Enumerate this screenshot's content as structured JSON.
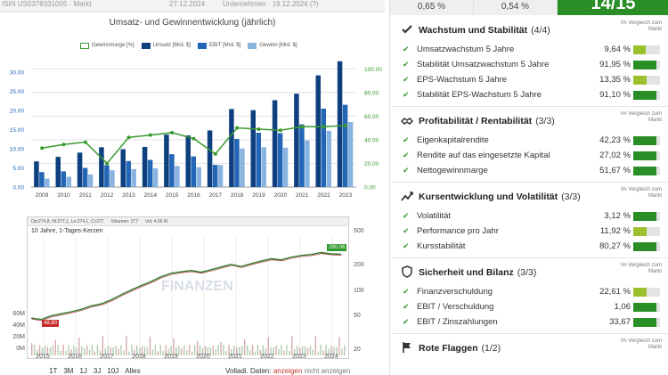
{
  "top_strip": {
    "left_text": "ISIN  US0378331005 · Markt",
    "mid_text": "27.12.2024",
    "right_text": "Unternehmen · 19.12.2024 (?)"
  },
  "colors": {
    "dark_blue": "#0e3f7f",
    "mid_blue": "#2366b5",
    "light_blue": "#8ab4e0",
    "green_line": "#3a9b2f",
    "score_green": "#2a8e27",
    "bar_green": "#2a8e27",
    "bar_lime": "#9bc02e"
  },
  "chart_data": {
    "type": "bar",
    "title": "Umsatz- und Gewinnentwicklung (jährlich)",
    "categories": [
      "2009",
      "2010",
      "2011",
      "2012",
      "2013",
      "2014",
      "2015",
      "2016",
      "2017",
      "2018",
      "2019",
      "2020",
      "2021",
      "2022",
      "2023"
    ],
    "series": [
      {
        "name": "Umsatz [Mrd. $]",
        "values": [
          6.7,
          7.9,
          9.0,
          10.4,
          9.9,
          10.5,
          13.7,
          13.5,
          14.8,
          20.4,
          20.1,
          22.7,
          24.4,
          29.2,
          32.9
        ]
      },
      {
        "name": "EBIT [Mrd. $]",
        "values": [
          3.9,
          4.1,
          5.0,
          5.7,
          6.8,
          7.1,
          8.6,
          8.0,
          5.8,
          12.6,
          14.2,
          14.1,
          16.4,
          20.5,
          21.5
        ]
      },
      {
        "name": "Gewinn [Mrd. $]",
        "values": [
          2.2,
          2.7,
          3.3,
          4.4,
          4.7,
          4.9,
          5.5,
          5.2,
          5.8,
          10.1,
          10.4,
          10.3,
          12.2,
          14.7,
          17.0
        ]
      },
      {
        "name": "Gewinnmarge [%]",
        "axis": "right",
        "values": [
          33,
          36,
          38,
          20,
          42,
          44,
          46,
          41,
          28,
          50,
          49,
          48,
          51,
          51,
          52
        ]
      }
    ],
    "left_axis": {
      "ticks": [
        "0.00",
        "5.00",
        "10.00",
        "15.00",
        "20.00",
        "25.00",
        "30.00"
      ],
      "ylim": [
        0,
        34
      ]
    },
    "right_axis": {
      "ticks": [
        "0.00",
        "20.00",
        "40.00",
        "60.00",
        "80.00",
        "100.00"
      ],
      "ylim": [
        0,
        110
      ]
    },
    "legend_placement": "top"
  },
  "stock": {
    "header_items": [
      "Op:274,8, Hi:277,1, Lo:274,1, Cl:277",
      "Volumen: 277",
      "Vol: 4,66 M"
    ],
    "subtitle": "10 Jahre, 1-Tages-Kerzen",
    "watermark": "FINANZEN",
    "right_ticks": [
      "500",
      "200",
      "100",
      "50",
      "20"
    ],
    "left_ticks": [
      "60M",
      "40M",
      "20M",
      "0M"
    ],
    "x_ticks": [
      "2015",
      "2016",
      "2017",
      "2018",
      "2019",
      "2020",
      "2021",
      "2022",
      "2023",
      "2024"
    ],
    "high_badge": "290,06",
    "low_badge": "48,80",
    "price_path": [
      48.8,
      47,
      52,
      55,
      58,
      62,
      68,
      72,
      80,
      92,
      105,
      118,
      132,
      150,
      165,
      172,
      178,
      170,
      182,
      196,
      210,
      198,
      215,
      230,
      245,
      238,
      255,
      268,
      275,
      290,
      280,
      277
    ]
  },
  "range_buttons": [
    "1T",
    "3M",
    "1J",
    "3J",
    "10J",
    "Alles"
  ],
  "volume_note": {
    "prefix": "Volladi. Daten:",
    "show": "anzeigen",
    "hide": "nicht anzeigen"
  },
  "header": {
    "cells": [
      "0,65 %",
      "0,54 %"
    ],
    "score": "14/15"
  },
  "cmp_label": "Im Vergleich zum Markt",
  "sections": [
    {
      "icon": "check-icon",
      "title": "Wachstum und Stabilität",
      "count": "(4/4)",
      "rows": [
        {
          "label": "Umsatzwachstum 5 Jahre",
          "value": "9,64 %",
          "level": 0.45,
          "color": "#9bc02e"
        },
        {
          "label": "Stabilität Umsatzwachstum 5 Jahre",
          "value": "91,95 %",
          "level": 0.85,
          "color": "#2a8e27"
        },
        {
          "label": "EPS-Wachstum 5 Jahre",
          "value": "13,35 %",
          "level": 0.5,
          "color": "#9bc02e"
        },
        {
          "label": "Stabilität EPS-Wachstum 5 Jahre",
          "value": "91,10 %",
          "level": 0.85,
          "color": "#2a8e27"
        }
      ]
    },
    {
      "icon": "handshake-icon",
      "title": "Profitabilität / Rentabilität",
      "count": "(3/3)",
      "rows": [
        {
          "label": "Eigenkapitalrendite",
          "value": "42,23 %",
          "level": 0.85,
          "color": "#2a8e27"
        },
        {
          "label": "Rendite auf das eingesetzte Kapital",
          "value": "27,02 %",
          "level": 0.85,
          "color": "#2a8e27"
        },
        {
          "label": "Nettogewinnmarge",
          "value": "51,67 %",
          "level": 0.85,
          "color": "#2a8e27"
        }
      ]
    },
    {
      "icon": "trend-icon",
      "title": "Kursentwicklung und Volatilität",
      "count": "(3/3)",
      "rows": [
        {
          "label": "Volatilität",
          "value": "3,12 %",
          "level": 0.85,
          "color": "#2a8e27"
        },
        {
          "label": "Performance pro Jahr",
          "value": "11,92 %",
          "level": 0.5,
          "color": "#9bc02e"
        },
        {
          "label": "Kursstabilität",
          "value": "80,27 %",
          "level": 0.85,
          "color": "#2a8e27"
        }
      ]
    },
    {
      "icon": "shield-icon",
      "title": "Sicherheit und Bilanz",
      "count": "(3/3)",
      "rows": [
        {
          "label": "Finanzverschuldung",
          "value": "22,61 %",
          "level": 0.5,
          "color": "#9bc02e"
        },
        {
          "label": "EBIT / Verschuldung",
          "value": "1,06",
          "level": 0.85,
          "color": "#2a8e27"
        },
        {
          "label": "EBIT / Zinszahlungen",
          "value": "33,67",
          "level": 0.85,
          "color": "#2a8e27"
        }
      ]
    },
    {
      "icon": "flag-icon",
      "title": "Rote Flaggen",
      "count": "(1/2)",
      "rows": []
    }
  ]
}
